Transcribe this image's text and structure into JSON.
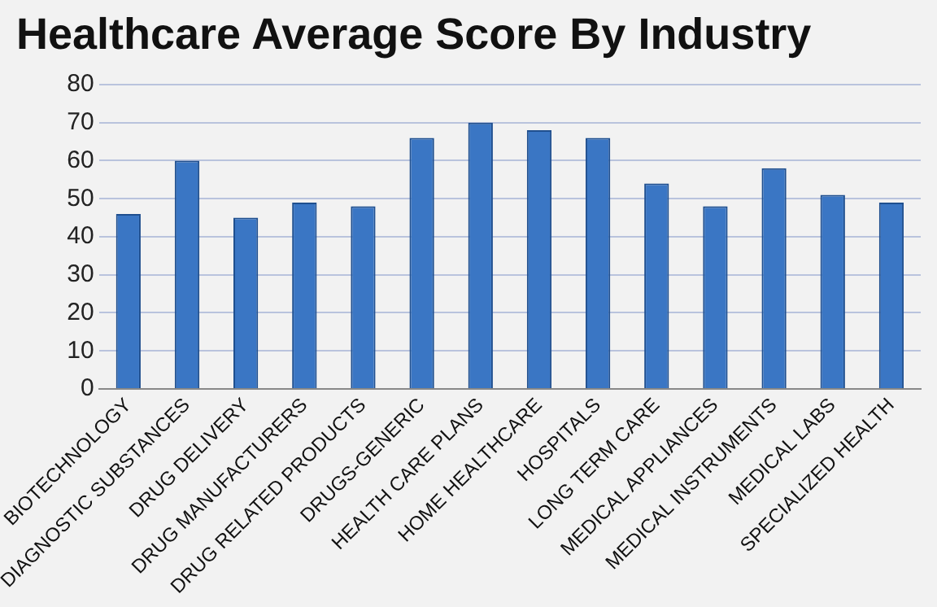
{
  "chart_data": {
    "type": "bar",
    "title": "Healthcare Average Score By Industry",
    "categories": [
      "BIOTECHNOLOGY",
      "DIAGNOSTIC SUBSTANCES",
      "DRUG DELIVERY",
      "DRUG MANUFACTURERS",
      "DRUG RELATED PRODUCTS",
      "DRUGS-GENERIC",
      "HEALTH CARE PLANS",
      "HOME HEALTHCARE",
      "HOSPITALS",
      "LONG TERM CARE",
      "MEDICAL APPLIANCES",
      "MEDICAL INSTRUMENTS",
      "MEDICAL LABS",
      "SPECIALIZED HEALTH"
    ],
    "values": [
      46,
      60,
      45,
      49,
      48,
      66,
      70,
      68,
      66,
      54,
      48,
      58,
      51,
      49
    ],
    "color": "#3a76c4",
    "ylim": [
      0,
      80
    ],
    "yticks": [
      0,
      10,
      20,
      30,
      40,
      50,
      60,
      70,
      80
    ],
    "grid": "y",
    "legend": false
  }
}
